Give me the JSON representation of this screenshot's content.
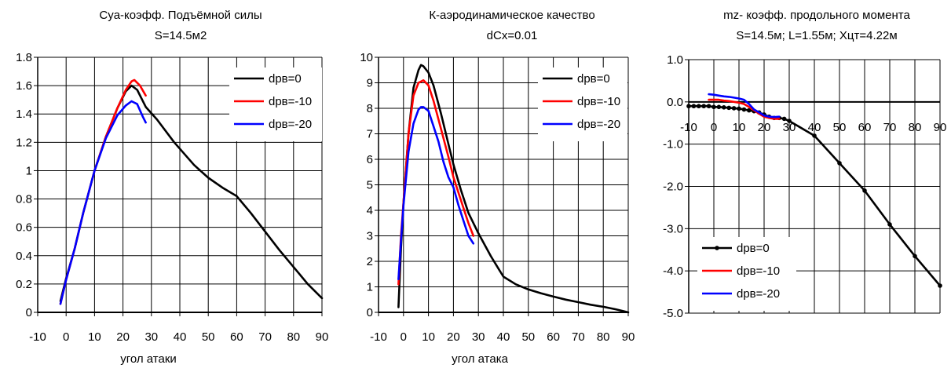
{
  "chart_data": [
    {
      "type": "line",
      "title": "Cya-коэфф. Подъёмной силы",
      "subtitle": "S=14.5м2",
      "xlabel": "угол атаки",
      "ylabel": "",
      "xlim": [
        -10,
        90
      ],
      "ylim": [
        0,
        1.8
      ],
      "xticks": [
        -10,
        0,
        10,
        20,
        30,
        40,
        50,
        60,
        70,
        80,
        90
      ],
      "xtick_labels": [
        "-10",
        "0",
        "10",
        "20",
        "30",
        "40",
        "50",
        "60",
        "70",
        "80",
        "90"
      ],
      "yticks": [
        0,
        0.2,
        0.4,
        0.6,
        0.8,
        1.0,
        1.2,
        1.4,
        1.6,
        1.8
      ],
      "ytick_labels": [
        "0",
        "0.2",
        "0.4",
        "0.6",
        "0.8",
        "1",
        "1.2",
        "1.4",
        "1.6",
        "1.8"
      ],
      "grid": true,
      "legend": "top-right",
      "series": [
        {
          "name": "dрв=0",
          "color": "#000000",
          "marker": false,
          "x": [
            -2,
            0,
            3,
            6,
            10,
            14,
            18,
            21,
            23,
            25,
            28,
            32,
            38,
            45,
            50,
            55,
            60,
            65,
            70,
            75,
            80,
            85,
            90
          ],
          "y": [
            0.08,
            0.24,
            0.45,
            0.7,
            1.0,
            1.24,
            1.44,
            1.56,
            1.6,
            1.57,
            1.45,
            1.36,
            1.2,
            1.04,
            0.95,
            0.88,
            0.82,
            0.7,
            0.57,
            0.44,
            0.32,
            0.2,
            0.1
          ]
        },
        {
          "name": "dрв=-10",
          "color": "#ff0000",
          "marker": false,
          "x": [
            -2,
            0,
            3,
            6,
            10,
            14,
            18,
            21,
            23,
            24,
            26,
            28
          ],
          "y": [
            0.06,
            0.23,
            0.45,
            0.7,
            1.0,
            1.24,
            1.44,
            1.57,
            1.63,
            1.64,
            1.6,
            1.53
          ]
        },
        {
          "name": "dрв=-20",
          "color": "#0000ff",
          "marker": false,
          "x": [
            -2,
            0,
            3,
            6,
            10,
            14,
            18,
            21,
            23,
            25,
            27,
            28
          ],
          "y": [
            0.06,
            0.23,
            0.45,
            0.7,
            1.0,
            1.23,
            1.39,
            1.46,
            1.49,
            1.47,
            1.38,
            1.34
          ]
        }
      ]
    },
    {
      "type": "line",
      "title": "К-аэродинамическое качество",
      "subtitle": "dCx=0.01",
      "xlabel": "угол атака",
      "ylabel": "",
      "xlim": [
        -10,
        90
      ],
      "ylim": [
        0,
        10
      ],
      "xticks": [
        -10,
        0,
        10,
        20,
        30,
        40,
        50,
        60,
        70,
        80,
        90
      ],
      "xtick_labels": [
        "-10",
        "0",
        "10",
        "20",
        "30",
        "40",
        "50",
        "60",
        "70",
        "80",
        "90"
      ],
      "yticks": [
        0,
        1,
        2,
        3,
        4,
        5,
        6,
        7,
        8,
        9,
        10
      ],
      "ytick_labels": [
        "0",
        "1",
        "2",
        "3",
        "4",
        "5",
        "6",
        "7",
        "8",
        "9",
        "10"
      ],
      "grid": true,
      "legend": "top-right",
      "series": [
        {
          "name": "dрв=0",
          "color": "#000000",
          "marker": false,
          "x": [
            -2,
            -1,
            0,
            2,
            4,
            6,
            7,
            8,
            10,
            12,
            15,
            18,
            20,
            23,
            26,
            30,
            35,
            40,
            45,
            50,
            55,
            60,
            65,
            70,
            75,
            80,
            85,
            88,
            90
          ],
          "y": [
            0.2,
            2.5,
            4.3,
            7.0,
            8.8,
            9.5,
            9.7,
            9.65,
            9.4,
            8.9,
            7.8,
            6.6,
            5.8,
            4.8,
            3.9,
            3.1,
            2.2,
            1.4,
            1.1,
            0.9,
            0.75,
            0.62,
            0.5,
            0.4,
            0.3,
            0.22,
            0.12,
            0.05,
            0.0
          ]
        },
        {
          "name": "dрв=-10",
          "color": "#ff0000",
          "marker": false,
          "x": [
            -2,
            -1,
            0,
            2,
            4,
            6,
            8,
            10,
            12,
            15,
            18,
            20,
            23,
            26,
            28
          ],
          "y": [
            1.1,
            3.0,
            4.3,
            7.0,
            8.5,
            9.0,
            9.1,
            8.9,
            8.3,
            7.2,
            6.1,
            5.3,
            4.4,
            3.5,
            3.0
          ]
        },
        {
          "name": "dрв=-20",
          "color": "#0000ff",
          "marker": false,
          "x": [
            -2,
            -1,
            0,
            2,
            4,
            6,
            7,
            8,
            10,
            12,
            14,
            16,
            18,
            20,
            22,
            24,
            26,
            28
          ],
          "y": [
            1.3,
            2.8,
            4.2,
            6.3,
            7.4,
            7.95,
            8.05,
            8.05,
            7.9,
            7.3,
            6.7,
            5.9,
            5.3,
            4.9,
            4.2,
            3.6,
            3.0,
            2.7
          ]
        }
      ]
    },
    {
      "type": "line",
      "title": "mz- коэфф. продольного момента",
      "subtitle": "S=14.5м; L=1.55м; Хцт=4.22м",
      "xlabel": "",
      "ylabel": "",
      "xlim": [
        -10,
        90
      ],
      "ylim": [
        -5,
        1
      ],
      "x_axis_at": 0,
      "xticks": [
        -10,
        0,
        10,
        20,
        30,
        40,
        50,
        60,
        70,
        80,
        90
      ],
      "xtick_labels": [
        "-10",
        "0",
        "10",
        "20",
        "30",
        "40",
        "50",
        "60",
        "70",
        "80",
        "90"
      ],
      "yticks": [
        -5,
        -4,
        -3,
        -2,
        -1,
        0,
        1
      ],
      "ytick_labels": [
        "-5.0",
        "-4.0",
        "-3.0",
        "-2.0",
        "-1.0",
        "0.0",
        "1.0"
      ],
      "grid": true,
      "legend": "bottom-left",
      "series": [
        {
          "name": "dрв=0",
          "color": "#000000",
          "marker": true,
          "x": [
            -10,
            -8,
            -6,
            -4,
            -2,
            0,
            2,
            4,
            6,
            8,
            10,
            12,
            14,
            16,
            18,
            20,
            22,
            24,
            26,
            28,
            30,
            40,
            50,
            60,
            70,
            80,
            90
          ],
          "y": [
            -0.1,
            -0.1,
            -0.1,
            -0.1,
            -0.1,
            -0.12,
            -0.12,
            -0.13,
            -0.14,
            -0.15,
            -0.16,
            -0.18,
            -0.2,
            -0.22,
            -0.25,
            -0.3,
            -0.35,
            -0.38,
            -0.38,
            -0.4,
            -0.45,
            -0.8,
            -1.45,
            -2.1,
            -2.9,
            -3.65,
            -4.35
          ]
        },
        {
          "name": "dрв=-10",
          "color": "#ff0000",
          "marker": false,
          "x": [
            -2,
            0,
            2,
            4,
            6,
            8,
            10,
            12,
            14,
            16,
            18,
            20,
            22,
            24,
            26
          ],
          "y": [
            0.05,
            0.05,
            0.05,
            0.03,
            0.02,
            0.0,
            -0.02,
            -0.05,
            -0.12,
            -0.2,
            -0.28,
            -0.35,
            -0.38,
            -0.4,
            -0.4
          ]
        },
        {
          "name": "dрв=-20",
          "color": "#0000ff",
          "marker": false,
          "x": [
            -2,
            0,
            2,
            4,
            6,
            8,
            10,
            12,
            14,
            16,
            18,
            20,
            22,
            24,
            26
          ],
          "y": [
            0.18,
            0.17,
            0.15,
            0.13,
            0.12,
            0.1,
            0.08,
            0.05,
            -0.05,
            -0.18,
            -0.25,
            -0.32,
            -0.35,
            -0.36,
            -0.35
          ]
        }
      ]
    }
  ]
}
